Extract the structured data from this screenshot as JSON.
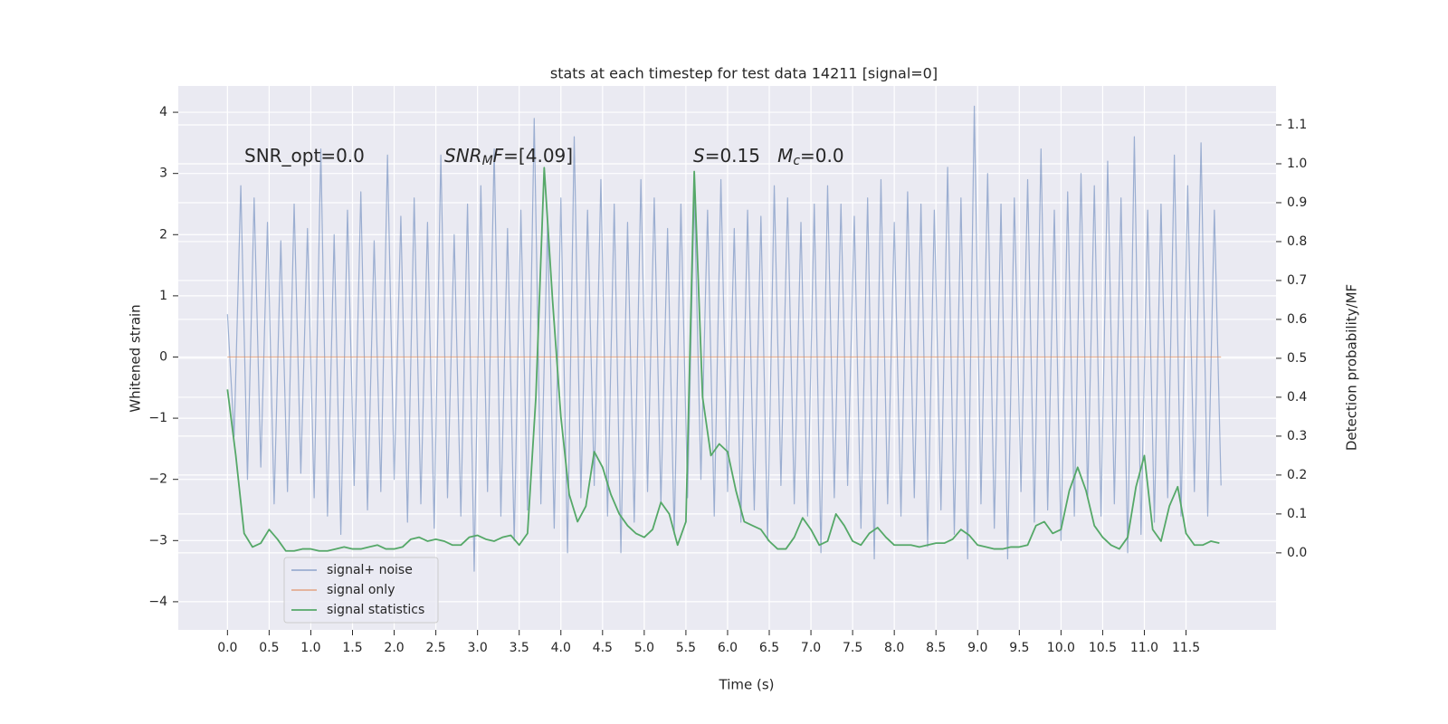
{
  "chart_data": {
    "type": "line",
    "title": "stats at each timestep for test data 14211 [signal=0]",
    "xlabel": "Time (s)",
    "ylabel": "Whitened strain",
    "y2label": "Detection probability/MF",
    "xlim": [
      -0.59,
      12.58
    ],
    "ylim": [
      -4.46,
      4.43
    ],
    "y2lim": [
      -0.198,
      1.2
    ],
    "xticks": [
      {
        "value": 0,
        "label": "0.0"
      },
      0.5,
      {
        "value": 1,
        "label": "1.0"
      },
      1.5,
      {
        "value": 2,
        "label": "2.0"
      },
      2.5,
      {
        "value": 3,
        "label": "3.0"
      },
      3.5,
      {
        "value": 4,
        "label": "4.0"
      },
      4.5,
      {
        "value": 5,
        "label": "5.0"
      },
      5.5,
      {
        "value": 6,
        "label": "6.0"
      },
      6.5,
      {
        "value": 7,
        "label": "7.0"
      },
      7.5,
      {
        "value": 8,
        "label": "8.0"
      },
      8.5,
      {
        "value": 9,
        "label": "9.0"
      },
      9.5,
      {
        "value": 10,
        "label": "10.0"
      },
      10.5,
      {
        "value": 11,
        "label": "11.0"
      },
      11.5
    ],
    "yticks": [
      {
        "value": -4,
        "label": "−4"
      },
      {
        "value": -3,
        "label": "−3"
      },
      {
        "value": -2,
        "label": "−2"
      },
      {
        "value": -1,
        "label": "−1"
      },
      0,
      1,
      2,
      3,
      4
    ],
    "y2ticks": [
      {
        "value": 0,
        "label": "0.0"
      },
      0.1,
      0.2,
      0.3,
      0.4,
      0.5,
      0.6,
      0.7,
      0.8,
      0.9,
      {
        "value": 1,
        "label": "1.0"
      },
      1.1
    ],
    "grid": true,
    "y2grid": true,
    "background": "#eaeaf2",
    "legend_loc": "lower left",
    "annotations": [
      {
        "parts": [
          {
            "text": "SNR_opt=0.0",
            "style": "normal"
          }
        ]
      },
      {
        "parts": [
          {
            "text": "SNR",
            "style": "italic"
          },
          {
            "text": "M",
            "style": "italic-sub"
          },
          {
            "text": "F",
            "style": "italic"
          },
          {
            "text": "=[4.09]",
            "style": "normal"
          }
        ]
      },
      {
        "parts": [
          {
            "text": "S",
            "style": "italic"
          },
          {
            "text": "=0.15   ",
            "style": "normal"
          },
          {
            "text": "M",
            "style": "italic"
          },
          {
            "text": "c",
            "style": "italic-sub"
          },
          {
            "text": "=0.0",
            "style": "normal"
          }
        ]
      }
    ],
    "series": [
      {
        "name": "signal+ noise",
        "color": "#4c72b0",
        "opacity": 0.5,
        "axis": "y",
        "x": [
          0,
          0.08,
          0.16,
          0.24,
          0.32,
          0.4,
          0.48,
          0.56,
          0.64,
          0.72,
          0.8,
          0.88,
          0.96,
          1.04,
          1.12,
          1.2,
          1.28,
          1.36,
          1.44,
          1.52,
          1.6,
          1.68,
          1.76,
          1.84,
          1.92,
          2,
          2.08,
          2.16,
          2.24,
          2.32,
          2.4,
          2.48,
          2.56,
          2.64,
          2.72,
          2.8,
          2.88,
          2.96,
          3.04,
          3.12,
          3.2,
          3.28,
          3.36,
          3.44,
          3.52,
          3.6,
          3.68,
          3.76,
          3.84,
          3.92,
          4,
          4.08,
          4.16,
          4.24,
          4.32,
          4.4,
          4.48,
          4.56,
          4.64,
          4.72,
          4.8,
          4.88,
          4.96,
          5.04,
          5.12,
          5.2,
          5.28,
          5.36,
          5.44,
          5.52,
          5.6,
          5.68,
          5.76,
          5.84,
          5.92,
          6,
          6.08,
          6.16,
          6.24,
          6.32,
          6.4,
          6.48,
          6.56,
          6.64,
          6.72,
          6.8,
          6.88,
          6.96,
          7.04,
          7.12,
          7.2,
          7.28,
          7.36,
          7.44,
          7.52,
          7.6,
          7.68,
          7.76,
          7.84,
          7.92,
          8,
          8.08,
          8.16,
          8.24,
          8.32,
          8.4,
          8.48,
          8.56,
          8.64,
          8.72,
          8.8,
          8.88,
          8.96,
          9.04,
          9.12,
          9.2,
          9.28,
          9.36,
          9.44,
          9.52,
          9.6,
          9.68,
          9.76,
          9.84,
          9.92,
          10,
          10.08,
          10.16,
          10.24,
          10.32,
          10.4,
          10.48,
          10.56,
          10.64,
          10.72,
          10.8,
          10.88,
          10.96,
          11.04,
          11.12,
          11.2,
          11.28,
          11.36,
          11.44,
          11.52,
          11.6,
          11.68,
          11.76,
          11.84,
          11.92
        ],
        "values": [
          0.7,
          -1.3,
          2.8,
          -2.0,
          2.6,
          -1.8,
          2.2,
          -2.4,
          1.9,
          -2.2,
          2.5,
          -1.9,
          2.1,
          -2.3,
          3.4,
          -2.6,
          2.0,
          -2.9,
          2.4,
          -2.1,
          2.7,
          -2.5,
          1.9,
          -2.2,
          3.3,
          -2.0,
          2.3,
          -2.7,
          2.6,
          -2.4,
          2.2,
          -2.8,
          3.3,
          -2.3,
          2.0,
          -2.6,
          2.5,
          -3.5,
          2.8,
          -2.2,
          3.4,
          -2.6,
          2.1,
          -3.0,
          2.4,
          -2.5,
          3.9,
          -2.4,
          2.2,
          -2.8,
          2.6,
          -3.2,
          3.6,
          -2.3,
          2.4,
          -2.1,
          2.9,
          -2.6,
          2.5,
          -3.2,
          2.2,
          -2.7,
          2.9,
          -2.2,
          2.6,
          -2.4,
          2.1,
          -2.9,
          2.5,
          -2.3,
          2.7,
          -2.0,
          2.4,
          -2.6,
          2.9,
          -2.2,
          2.1,
          -2.7,
          2.4,
          -2.5,
          2.3,
          -3.0,
          2.8,
          -2.1,
          2.6,
          -2.4,
          2.2,
          -2.6,
          2.5,
          -3.2,
          2.8,
          -2.3,
          2.5,
          -2.1,
          2.3,
          -2.8,
          2.6,
          -3.3,
          2.9,
          -2.4,
          2.2,
          -2.6,
          2.7,
          -2.3,
          2.5,
          -3.1,
          2.4,
          -2.5,
          3.1,
          -2.9,
          2.6,
          -3.3,
          4.1,
          -2.4,
          3.0,
          -2.8,
          2.5,
          -3.3,
          2.6,
          -2.2,
          2.9,
          -2.7,
          3.4,
          -2.5,
          2.4,
          -3.0,
          2.7,
          -2.6,
          3.0,
          -2.3,
          2.8,
          -2.6,
          3.2,
          -2.4,
          2.6,
          -3.2,
          3.6,
          -2.9,
          2.4,
          -2.7,
          2.5,
          -2.3,
          3.3,
          -2.6,
          2.8,
          -2.2,
          3.5,
          -2.6,
          2.4,
          -2.1
        ]
      },
      {
        "name": "signal only",
        "color": "#dd8452",
        "opacity": 0.6,
        "axis": "y",
        "x": [
          0,
          11.92
        ],
        "values": [
          0,
          0
        ]
      },
      {
        "name": "signal statistics",
        "color": "#55a868",
        "opacity": 1,
        "axis": "y2",
        "x": [
          0,
          0.1,
          0.2,
          0.3,
          0.4,
          0.5,
          0.6,
          0.7,
          0.8,
          0.9,
          1,
          1.1,
          1.2,
          1.3,
          1.4,
          1.5,
          1.6,
          1.7,
          1.8,
          1.9,
          2,
          2.1,
          2.2,
          2.3,
          2.4,
          2.5,
          2.6,
          2.7,
          2.8,
          2.9,
          3,
          3.1,
          3.2,
          3.3,
          3.4,
          3.5,
          3.6,
          3.7,
          3.8,
          3.9,
          4,
          4.1,
          4.2,
          4.3,
          4.4,
          4.5,
          4.6,
          4.7,
          4.8,
          4.9,
          5,
          5.1,
          5.2,
          5.3,
          5.4,
          5.5,
          5.6,
          5.7,
          5.8,
          5.9,
          6,
          6.1,
          6.2,
          6.3,
          6.4,
          6.5,
          6.6,
          6.7,
          6.8,
          6.9,
          7,
          7.1,
          7.2,
          7.3,
          7.4,
          7.5,
          7.6,
          7.7,
          7.8,
          7.9,
          8,
          8.1,
          8.2,
          8.3,
          8.4,
          8.5,
          8.6,
          8.7,
          8.8,
          8.9,
          9,
          9.1,
          9.2,
          9.3,
          9.4,
          9.5,
          9.6,
          9.7,
          9.8,
          9.9,
          10,
          10.1,
          10.2,
          10.3,
          10.4,
          10.5,
          10.6,
          10.7,
          10.8,
          10.9,
          11,
          11.1,
          11.2,
          11.3,
          11.4,
          11.5,
          11.6,
          11.7,
          11.8,
          11.9
        ],
        "values": [
          0.42,
          0.25,
          0.05,
          0.015,
          0.025,
          0.06,
          0.035,
          0.005,
          0.005,
          0.01,
          0.01,
          0.005,
          0.005,
          0.01,
          0.015,
          0.01,
          0.01,
          0.015,
          0.02,
          0.01,
          0.01,
          0.015,
          0.035,
          0.04,
          0.03,
          0.035,
          0.03,
          0.02,
          0.02,
          0.04,
          0.045,
          0.035,
          0.03,
          0.04,
          0.045,
          0.02,
          0.05,
          0.4,
          0.99,
          0.65,
          0.35,
          0.15,
          0.08,
          0.12,
          0.26,
          0.22,
          0.15,
          0.1,
          0.07,
          0.05,
          0.04,
          0.06,
          0.13,
          0.1,
          0.02,
          0.08,
          0.98,
          0.4,
          0.25,
          0.28,
          0.26,
          0.16,
          0.08,
          0.07,
          0.06,
          0.03,
          0.01,
          0.01,
          0.04,
          0.09,
          0.06,
          0.02,
          0.03,
          0.1,
          0.07,
          0.03,
          0.02,
          0.05,
          0.065,
          0.04,
          0.02,
          0.02,
          0.02,
          0.015,
          0.02,
          0.025,
          0.025,
          0.035,
          0.06,
          0.045,
          0.02,
          0.015,
          0.01,
          0.01,
          0.015,
          0.015,
          0.02,
          0.07,
          0.08,
          0.05,
          0.06,
          0.16,
          0.22,
          0.16,
          0.07,
          0.04,
          0.02,
          0.01,
          0.04,
          0.17,
          0.25,
          0.06,
          0.03,
          0.12,
          0.17,
          0.05,
          0.02,
          0.02,
          0.03,
          0.025
        ]
      }
    ]
  }
}
